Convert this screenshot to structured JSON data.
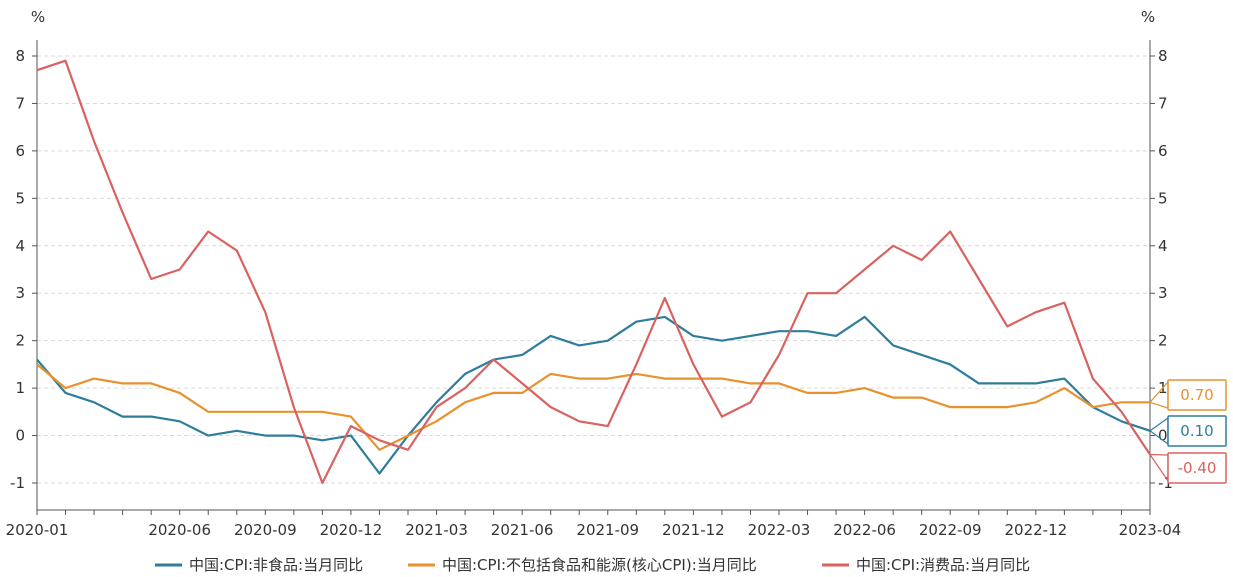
{
  "chart_data": {
    "type": "line",
    "y_unit_left": "%",
    "y_unit_right": "%",
    "ylim": [
      -1,
      8
    ],
    "y_ticks": [
      "-1",
      "0",
      "1",
      "2",
      "3",
      "4",
      "5",
      "6",
      "7",
      "8"
    ],
    "x_tick_labels": [
      "2020-01",
      "2020-06",
      "2020-09",
      "2020-12",
      "2021-03",
      "2021-06",
      "2021-09",
      "2021-12",
      "2022-03",
      "2022-06",
      "2022-09",
      "2022-12",
      "2023-04"
    ],
    "x": [
      "2020-01",
      "2020-02",
      "2020-03",
      "2020-04",
      "2020-05",
      "2020-06",
      "2020-07",
      "2020-08",
      "2020-09",
      "2020-10",
      "2020-11",
      "2020-12",
      "2021-01",
      "2021-02",
      "2021-03",
      "2021-04",
      "2021-05",
      "2021-06",
      "2021-07",
      "2021-08",
      "2021-09",
      "2021-10",
      "2021-11",
      "2021-12",
      "2022-01",
      "2022-02",
      "2022-03",
      "2022-04",
      "2022-05",
      "2022-06",
      "2022-07",
      "2022-08",
      "2022-09",
      "2022-10",
      "2022-11",
      "2022-12",
      "2023-01",
      "2023-02",
      "2023-03",
      "2023-04"
    ],
    "grid": "horizontal dashed",
    "legend_position": "bottom",
    "series": [
      {
        "name": "中国:CPI:非食品:当月同比",
        "color": "#2e7d9a",
        "end_label": "0.10",
        "values": [
          1.6,
          0.9,
          0.7,
          0.4,
          0.4,
          0.3,
          0.0,
          0.1,
          0.0,
          0.0,
          -0.1,
          0.0,
          -0.8,
          0.0,
          0.7,
          1.3,
          1.6,
          1.7,
          2.1,
          1.9,
          2.0,
          2.4,
          2.5,
          2.1,
          2.0,
          2.1,
          2.2,
          2.2,
          2.1,
          2.5,
          1.9,
          1.7,
          1.5,
          1.1,
          1.1,
          1.1,
          1.2,
          0.6,
          0.3,
          0.1
        ]
      },
      {
        "name": "中国:CPI:不包括食品和能源(核心CPI):当月同比",
        "color": "#e8922e",
        "end_label": "0.70",
        "values": [
          1.5,
          1.0,
          1.2,
          1.1,
          1.1,
          0.9,
          0.5,
          0.5,
          0.5,
          0.5,
          0.5,
          0.4,
          -0.3,
          0.0,
          0.3,
          0.7,
          0.9,
          0.9,
          1.3,
          1.2,
          1.2,
          1.3,
          1.2,
          1.2,
          1.2,
          1.1,
          1.1,
          0.9,
          0.9,
          1.0,
          0.8,
          0.8,
          0.6,
          0.6,
          0.6,
          0.7,
          1.0,
          0.6,
          0.7,
          0.7
        ]
      },
      {
        "name": "中国:CPI:消费品:当月同比",
        "color": "#d9625f",
        "end_label": "-0.40",
        "values": [
          7.7,
          7.9,
          6.2,
          4.7,
          3.3,
          3.5,
          4.3,
          3.9,
          2.6,
          0.6,
          -1.0,
          0.2,
          -0.1,
          -0.3,
          0.6,
          1.0,
          1.6,
          1.1,
          0.6,
          0.3,
          0.2,
          1.5,
          2.9,
          1.5,
          0.4,
          0.7,
          1.7,
          3.0,
          3.0,
          3.5,
          4.0,
          3.7,
          4.3,
          3.3,
          2.3,
          2.6,
          2.8,
          1.2,
          0.5,
          -0.4
        ]
      }
    ]
  }
}
